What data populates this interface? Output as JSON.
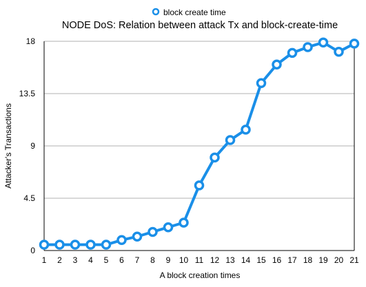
{
  "chart_data": {
    "type": "line",
    "title": "NODE DoS: Relation between attack Tx and block-create-time",
    "xlabel": "A block creation times",
    "ylabel": "Attacker's Transactions",
    "categories": [
      "1",
      "2",
      "3",
      "4",
      "5",
      "6",
      "7",
      "8",
      "9",
      "10",
      "11",
      "12",
      "13",
      "14",
      "15",
      "16",
      "17",
      "18",
      "19",
      "20",
      "21"
    ],
    "ylim": [
      0,
      18
    ],
    "yticks": [
      "0",
      "4.5",
      "9",
      "13.5",
      "18"
    ],
    "grid": true,
    "legend_position": "top-center",
    "series": [
      {
        "name": "block create time",
        "color": "#1a8fe8",
        "values": [
          0.5,
          0.5,
          0.5,
          0.5,
          0.5,
          0.9,
          1.2,
          1.6,
          2.0,
          2.4,
          5.6,
          8.0,
          9.5,
          10.4,
          14.4,
          16.0,
          17.0,
          17.5,
          17.9,
          17.1,
          17.8
        ]
      }
    ]
  }
}
